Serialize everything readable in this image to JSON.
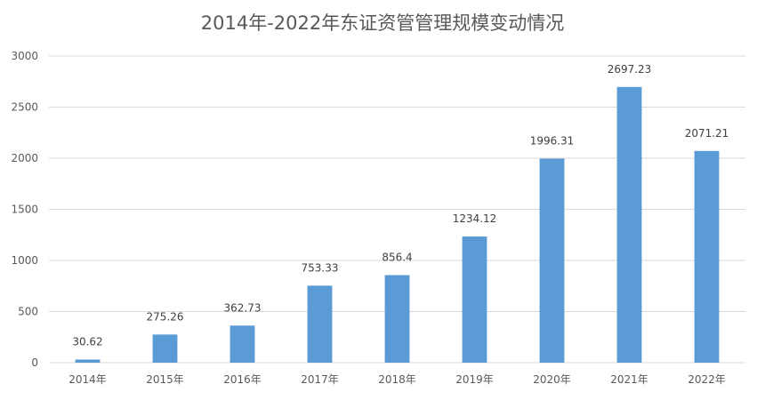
{
  "chart_data": {
    "type": "bar",
    "title": "2014年-2022年东证资管管理规模变动情况",
    "xlabel": "",
    "ylabel": "",
    "categories": [
      "2014年",
      "2015年",
      "2016年",
      "2017年",
      "2018年",
      "2019年",
      "2020年",
      "2021年",
      "2022年"
    ],
    "values": [
      30.62,
      275.26,
      362.73,
      753.33,
      856.4,
      1234.12,
      1996.31,
      2697.23,
      2071.21
    ],
    "data_labels": [
      "30.62",
      "275.26",
      "362.73",
      "753.33",
      "856.4",
      "1234.12",
      "1996.31",
      "2697.23",
      "2071.21"
    ],
    "ylim": [
      0,
      3000
    ],
    "yticks": [
      0,
      500,
      1000,
      1500,
      2000,
      2500,
      3000
    ],
    "grid": true,
    "legend": "none",
    "bar_color": "#5b9bd5",
    "grid_color": "#d9d9d9"
  }
}
